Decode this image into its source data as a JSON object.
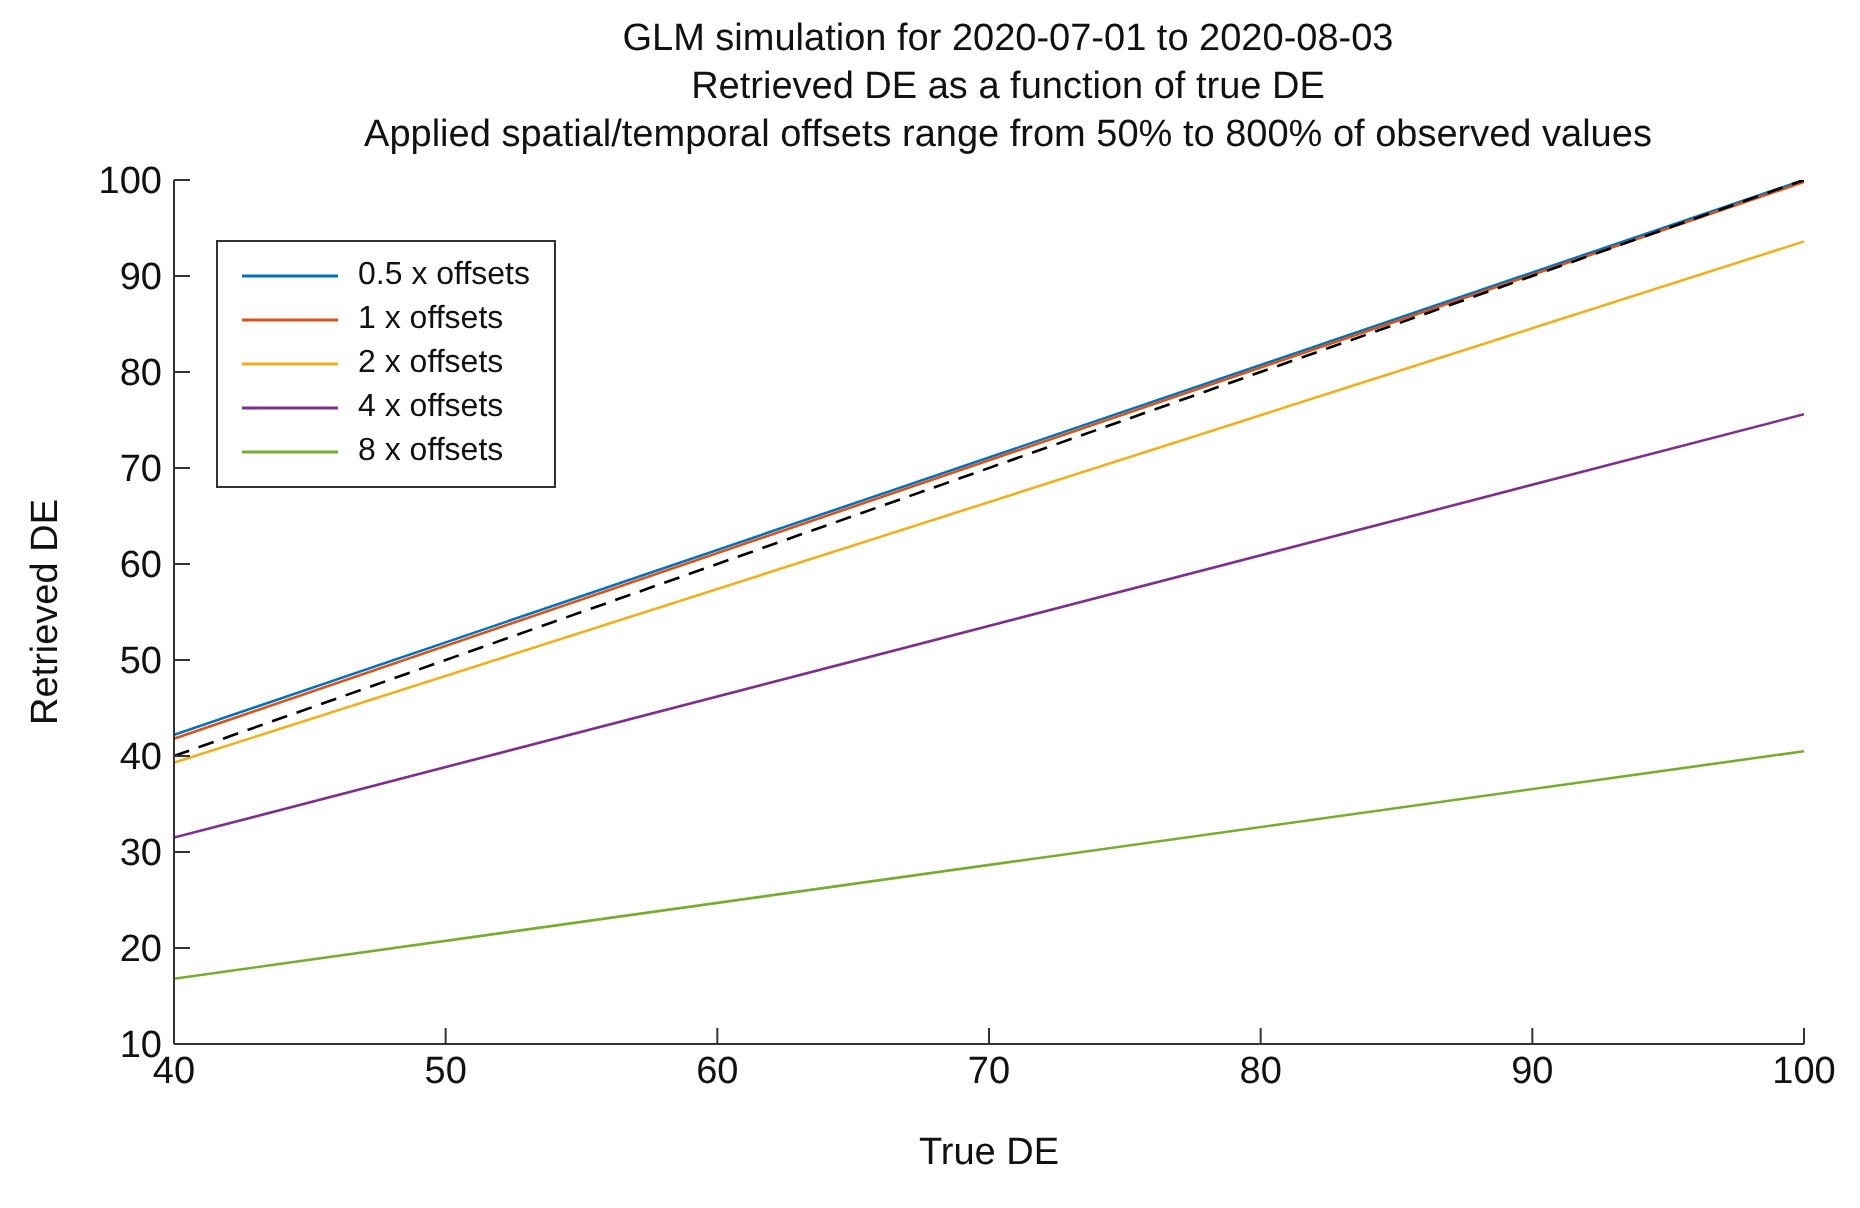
{
  "chart_data": {
    "type": "line",
    "title": "GLM simulation for 2020-07-01 to 2020-08-03",
    "subtitle": "Retrieved DE as a function of true DE",
    "annotations": [
      "Applied spatial/temporal offsets range from 50% to 800% of observed values"
    ],
    "xlabel": "True DE",
    "ylabel": "Retrieved DE",
    "x": [
      40,
      100
    ],
    "series": [
      {
        "name": "0.5 x offsets",
        "color": "#0072bd",
        "values": [
          42.2,
          100
        ]
      },
      {
        "name": "1 x offsets",
        "color": "#d95319",
        "values": [
          41.8,
          99.8
        ]
      },
      {
        "name": "2 x offsets",
        "color": "#edb120",
        "values": [
          39.3,
          93.6
        ]
      },
      {
        "name": "4 x offsets",
        "color": "#7e2f8e",
        "values": [
          31.5,
          75.6
        ]
      },
      {
        "name": "8 x offsets",
        "color": "#77ac30",
        "values": [
          16.8,
          40.5
        ]
      },
      {
        "color": "#000000",
        "values": [
          40,
          100
        ],
        "line_style": "dashed"
      }
    ],
    "xlim": [
      40,
      100
    ],
    "xticks": [
      40,
      50,
      60,
      70,
      80,
      90,
      100
    ],
    "ylim": [
      10,
      100
    ],
    "yticks": [
      10,
      20,
      30,
      40,
      50,
      60,
      70,
      80,
      90,
      100
    ],
    "legend": "top left",
    "grid": false,
    "marker": "none"
  }
}
